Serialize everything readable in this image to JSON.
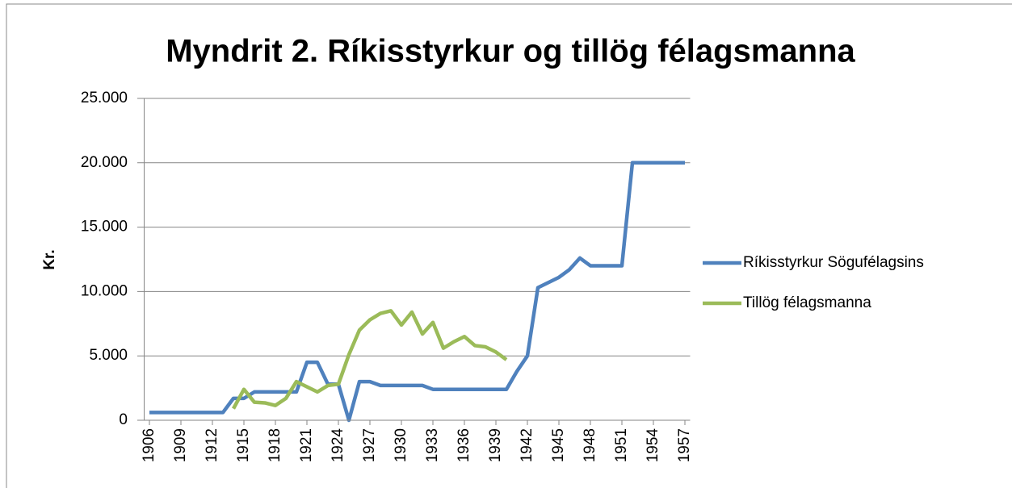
{
  "chart_data": {
    "type": "line",
    "title": "Myndrit 2. Ríkisstyrkur og tillög félagsmanna",
    "y_label": "Kr.",
    "x": [
      1906,
      1907,
      1908,
      1909,
      1910,
      1911,
      1912,
      1913,
      1914,
      1915,
      1916,
      1917,
      1918,
      1919,
      1920,
      1921,
      1922,
      1923,
      1924,
      1925,
      1926,
      1927,
      1928,
      1929,
      1930,
      1931,
      1932,
      1933,
      1934,
      1935,
      1936,
      1937,
      1938,
      1939,
      1940,
      1941,
      1942,
      1943,
      1944,
      1945,
      1946,
      1947,
      1948,
      1949,
      1950,
      1951,
      1952,
      1953,
      1954,
      1955,
      1956,
      1957
    ],
    "series": [
      {
        "name": "Ríkisstyrkur Sögufélagsins",
        "color": "#4f81bd",
        "values": [
          600,
          600,
          600,
          600,
          600,
          600,
          600,
          600,
          1700,
          1700,
          2200,
          2200,
          2200,
          2200,
          2200,
          4500,
          4500,
          2800,
          2800,
          0,
          3000,
          3000,
          2700,
          2700,
          2700,
          2700,
          2700,
          2400,
          2400,
          2400,
          2400,
          2400,
          2400,
          2400,
          2400,
          3800,
          5000,
          10300,
          10700,
          11100,
          11700,
          12600,
          12000,
          12000,
          12000,
          12000,
          20000,
          20000,
          20000,
          20000,
          20000,
          20000
        ]
      },
      {
        "name": "Tillög félagsmanna",
        "color": "#9bbb59",
        "values": [
          null,
          null,
          null,
          null,
          null,
          null,
          null,
          null,
          900,
          2400,
          1400,
          1350,
          1150,
          1700,
          3000,
          2600,
          2200,
          2700,
          2800,
          5100,
          7000,
          7800,
          8300,
          8500,
          7400,
          8400,
          6700,
          7600,
          5600,
          6100,
          6500,
          5800,
          5700,
          5300,
          4700,
          null,
          null,
          null,
          null,
          null,
          null,
          null,
          null,
          null,
          null,
          null,
          null,
          null,
          null,
          null,
          null,
          null
        ]
      }
    ],
    "xlim": [
      1905.5,
      1957.5
    ],
    "xticks": [
      1906,
      1909,
      1912,
      1915,
      1918,
      1921,
      1924,
      1927,
      1930,
      1933,
      1936,
      1939,
      1942,
      1945,
      1948,
      1951,
      1954,
      1957
    ],
    "ylim": [
      0,
      25000
    ],
    "yticks": [
      0,
      {
        "value": 5000,
        "label": "5.000"
      },
      {
        "value": 10000,
        "label": "10.000"
      },
      {
        "value": 15000,
        "label": "15.000"
      },
      {
        "value": 20000,
        "label": "20.000"
      },
      {
        "value": 25000,
        "label": "25.000"
      }
    ],
    "grid": true,
    "legend": "right"
  }
}
